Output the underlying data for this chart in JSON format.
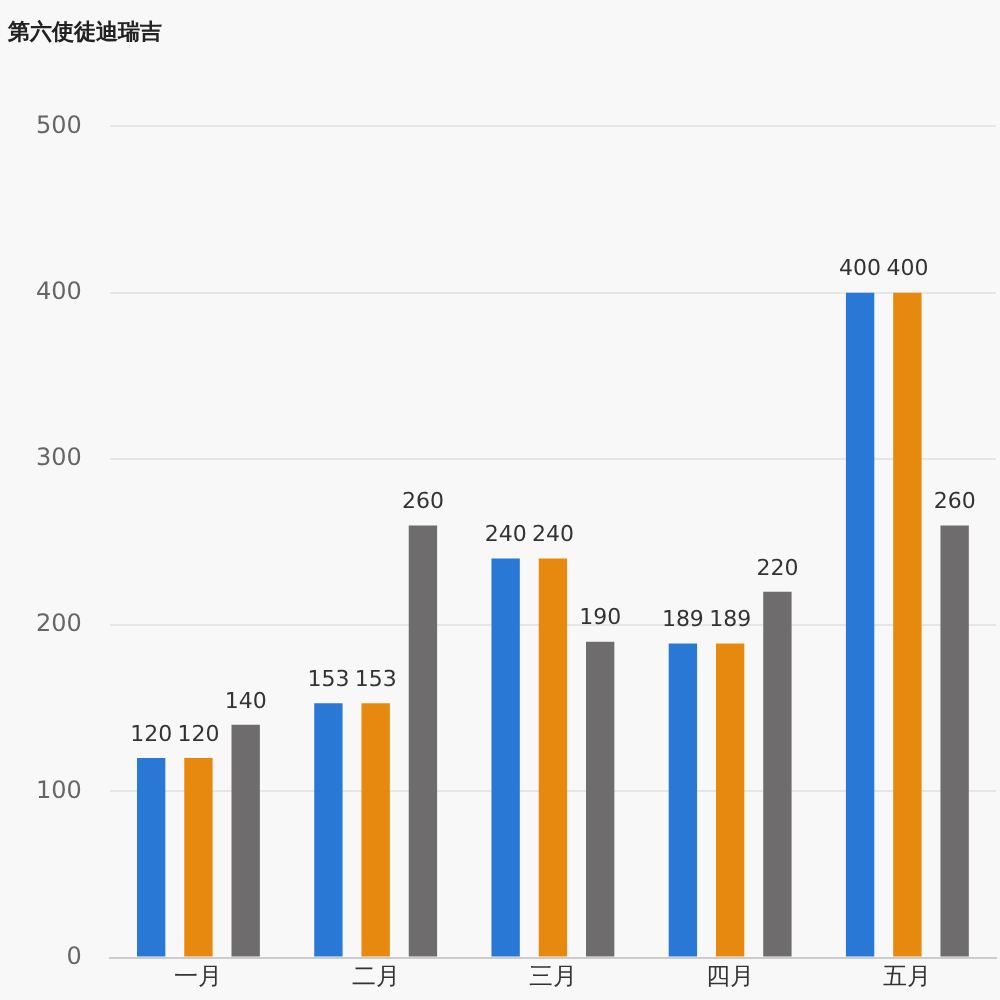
{
  "chart_data": {
    "type": "bar",
    "title": "第六使徒迪瑞吉",
    "categories": [
      "一月",
      "二月",
      "三月",
      "四月",
      "五月"
    ],
    "series": [
      {
        "color": "#2a78d6",
        "values": [
          120,
          153,
          240,
          189,
          400
        ]
      },
      {
        "color": "#e8890f",
        "values": [
          120,
          153,
          240,
          189,
          400
        ]
      },
      {
        "color": "#6e6c6c",
        "values": [
          140,
          260,
          190,
          220,
          260
        ]
      }
    ],
    "ylim": [
      0,
      500
    ],
    "yticks": [
      0,
      100,
      200,
      300,
      400,
      500
    ],
    "grid": "y",
    "data_labels": true,
    "legend": false
  }
}
